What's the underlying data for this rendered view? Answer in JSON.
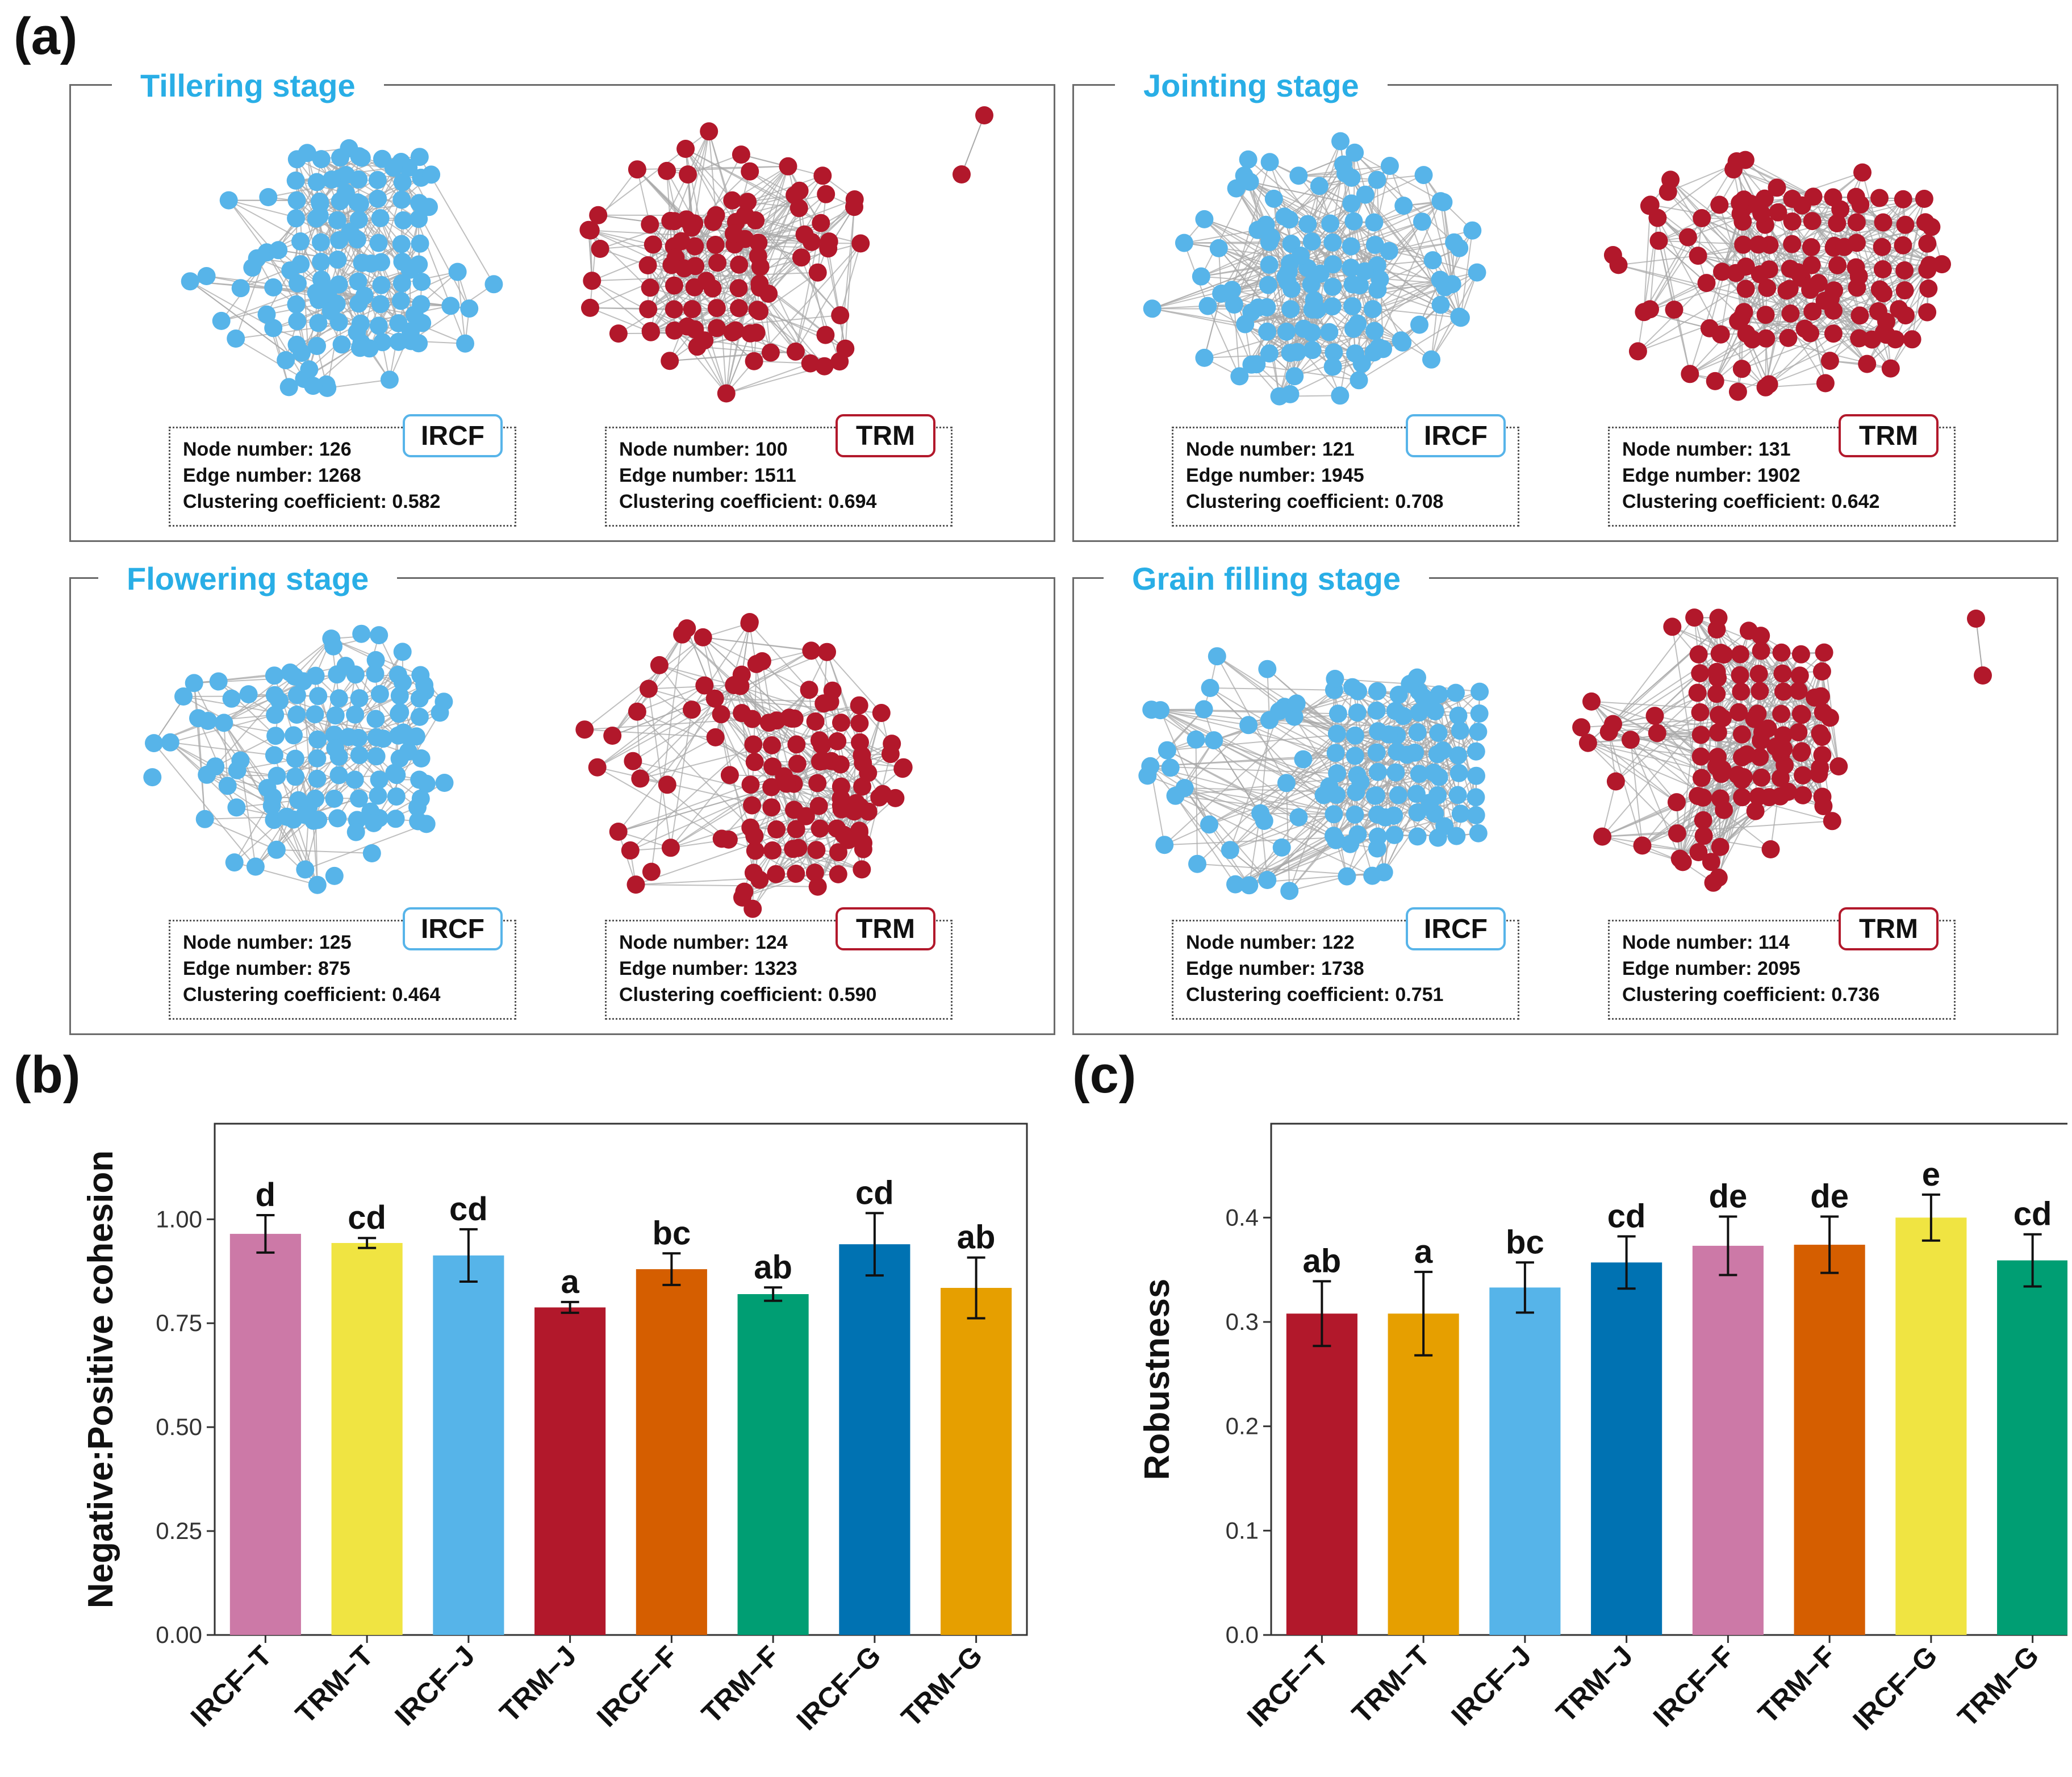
{
  "panels": {
    "a": "(a)",
    "b": "(b)",
    "c": "(c)"
  },
  "colors": {
    "ircf_node": "#57b4e9",
    "trm_node": "#b2182b",
    "edge": "#a9a9a9",
    "stage_title": "#29aee6"
  },
  "networks": [
    {
      "stage": "Tillering stage",
      "ircf": {
        "tag": "IRCF",
        "lines": [
          "Node number: 126",
          "Edge number: 1268",
          "Clustering coefficient: 0.582"
        ],
        "nodes": 126,
        "edges": 1268,
        "clustering": 0.582
      },
      "trm": {
        "tag": "TRM",
        "lines": [
          "Node number: 100",
          "Edge number: 1511",
          "Clustering coefficient: 0.694"
        ],
        "nodes": 100,
        "edges": 1511,
        "clustering": 0.694
      }
    },
    {
      "stage": "Jointing stage",
      "ircf": {
        "tag": "IRCF",
        "lines": [
          "Node number: 121",
          "Edge number: 1945",
          "Clustering coefficient: 0.708"
        ],
        "nodes": 121,
        "edges": 1945,
        "clustering": 0.708
      },
      "trm": {
        "tag": "TRM",
        "lines": [
          "Node number: 131",
          "Edge number: 1902",
          "Clustering coefficient: 0.642"
        ],
        "nodes": 131,
        "edges": 1902,
        "clustering": 0.642
      }
    },
    {
      "stage": "Flowering stage",
      "ircf": {
        "tag": "IRCF",
        "lines": [
          "Node number: 125",
          "Edge number: 875",
          "Clustering coefficient: 0.464"
        ],
        "nodes": 125,
        "edges": 875,
        "clustering": 0.464
      },
      "trm": {
        "tag": "TRM",
        "lines": [
          "Node number: 124",
          "Edge number: 1323",
          "Clustering coefficient: 0.590"
        ],
        "nodes": 124,
        "edges": 1323,
        "clustering": 0.59
      }
    },
    {
      "stage": "Grain filling stage",
      "ircf": {
        "tag": "IRCF",
        "lines": [
          "Node number: 122",
          "Edge number: 1738",
          "Clustering coefficient: 0.751"
        ],
        "nodes": 122,
        "edges": 1738,
        "clustering": 0.751
      },
      "trm": {
        "tag": "TRM",
        "lines": [
          "Node number: 114",
          "Edge number: 2095",
          "Clustering coefficient: 0.736"
        ],
        "nodes": 114,
        "edges": 2095,
        "clustering": 0.736
      }
    }
  ],
  "chart_data": [
    {
      "type": "bar",
      "panel": "(b)",
      "title": "",
      "xlabel": "",
      "ylabel": "Negative:Positive cohesion",
      "ylim": [
        0,
        1.23
      ],
      "yticks": [
        0,
        0.25,
        0.5,
        0.75,
        1.0
      ],
      "ytick_labels": [
        "0.00",
        "0.25",
        "0.50",
        "0.75",
        "1.00"
      ],
      "categories": [
        "IRCF−T",
        "TRM−T",
        "IRCF−J",
        "TRM−J",
        "IRCF−F",
        "TRM−F",
        "IRCF−G",
        "TRM−G"
      ],
      "values": [
        0.965,
        0.943,
        0.913,
        0.788,
        0.88,
        0.82,
        0.94,
        0.835
      ],
      "errors": [
        0.045,
        0.012,
        0.063,
        0.013,
        0.038,
        0.016,
        0.075,
        0.073
      ],
      "letters": [
        "d",
        "cd",
        "cd",
        "a",
        "bc",
        "ab",
        "cd",
        "ab"
      ],
      "colors": [
        "#cc79a7",
        "#f0e442",
        "#56b4e9",
        "#b2182b",
        "#d55e00",
        "#009e73",
        "#0072b2",
        "#e69f00"
      ]
    },
    {
      "type": "bar",
      "panel": "(c)",
      "title": "",
      "xlabel": "",
      "ylabel": "Robustness",
      "ylim": [
        0,
        0.49
      ],
      "yticks": [
        0,
        0.1,
        0.2,
        0.3,
        0.4
      ],
      "ytick_labels": [
        "0.0",
        "0.1",
        "0.2",
        "0.3",
        "0.4"
      ],
      "categories": [
        "IRCF−T",
        "TRM−T",
        "IRCF−J",
        "TRM−J",
        "IRCF−F",
        "TRM−F",
        "IRCF−G",
        "TRM−G"
      ],
      "values": [
        0.308,
        0.308,
        0.333,
        0.357,
        0.373,
        0.374,
        0.4,
        0.359
      ],
      "errors": [
        0.031,
        0.04,
        0.024,
        0.025,
        0.028,
        0.027,
        0.022,
        0.025
      ],
      "letters": [
        "ab",
        "a",
        "bc",
        "cd",
        "de",
        "de",
        "e",
        "cd"
      ],
      "colors": [
        "#b2182b",
        "#e69f00",
        "#56b4e9",
        "#0072b2",
        "#cc79a7",
        "#d55e00",
        "#f0e442",
        "#009e73"
      ]
    }
  ]
}
